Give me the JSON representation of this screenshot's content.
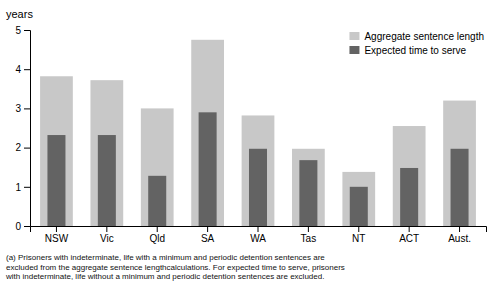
{
  "chart_data": {
    "type": "bar",
    "categories": [
      "NSW",
      "Vic",
      "Qld",
      "SA",
      "WA",
      "Tas",
      "NT",
      "ACT",
      "Aust."
    ],
    "series": [
      {
        "name": "Aggregate sentence length",
        "color": "#c8c8c8",
        "values": [
          3.82,
          3.72,
          3.0,
          4.75,
          2.82,
          1.97,
          1.38,
          2.55,
          3.2
        ]
      },
      {
        "name": "Expected time to serve",
        "color": "#636363",
        "values": [
          2.32,
          2.32,
          1.28,
          2.9,
          1.97,
          1.68,
          1.0,
          1.48,
          1.97
        ]
      }
    ],
    "y_label": "years",
    "ylim": [
      0,
      5
    ],
    "yticks": [
      0,
      1,
      2,
      3,
      4,
      5
    ],
    "grid": false,
    "legend": "upper-right",
    "annotations": [
      "(a) Prisoners with indeterminate, life with a minimum and periodic detention sentences are\nexcluded from the aggregate sentence lengthcalculations. For expected time to serve, prisoners\nwith indeterminate, life without a minimum and periodic detention sentences are excluded."
    ]
  }
}
